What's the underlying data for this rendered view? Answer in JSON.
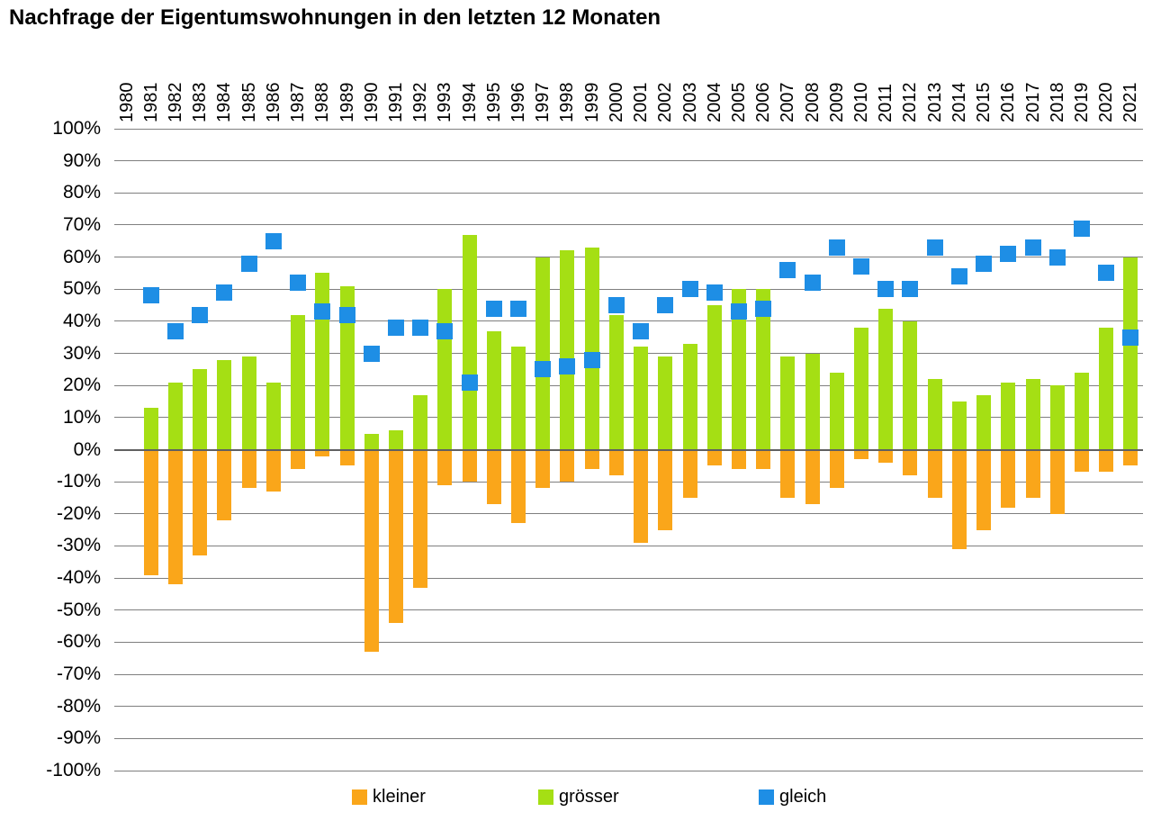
{
  "title": "Nachfrage der Eigentumswohnungen in den letzten 12 Monaten",
  "colors": {
    "kleiner": "#FAA61A",
    "groesser": "#A5DF14",
    "gleich": "#1E8EE5",
    "grid": "#7F7F7F",
    "zero_line": "#606060",
    "background": "#FFFFFF",
    "text": "#000000"
  },
  "legend": [
    {
      "key": "kleiner",
      "label": "kleiner",
      "color": "#FAA61A"
    },
    {
      "key": "groesser",
      "label": "grösser",
      "color": "#A5DF14"
    },
    {
      "key": "gleich",
      "label": "gleich",
      "color": "#1E8EE5"
    }
  ],
  "y_axis": {
    "min": -100,
    "max": 100,
    "step": 10,
    "suffix": "%"
  },
  "chart_data": {
    "type": "bar",
    "title": "Nachfrage der Eigentumswohnungen in den letzten 12 Monaten",
    "xlabel": "",
    "ylabel": "",
    "ylim": [
      -100,
      100
    ],
    "ytick_step": 10,
    "grid": true,
    "legend_position": "bottom",
    "categories": [
      1980,
      1981,
      1982,
      1983,
      1984,
      1985,
      1986,
      1987,
      1988,
      1989,
      1990,
      1991,
      1992,
      1993,
      1994,
      1995,
      1996,
      1997,
      1998,
      1999,
      2000,
      2001,
      2002,
      2003,
      2004,
      2005,
      2006,
      2007,
      2008,
      2009,
      2010,
      2011,
      2012,
      2013,
      2014,
      2015,
      2016,
      2017,
      2018,
      2019,
      2020,
      2021
    ],
    "series": [
      {
        "name": "kleiner",
        "render": "bar",
        "color": "#FAA61A",
        "values": [
          null,
          -39,
          -42,
          -33,
          -22,
          -12,
          -13,
          -6,
          -2,
          -5,
          -63,
          -54,
          -43,
          -11,
          -10,
          -17,
          -23,
          -12,
          -10,
          -6,
          -8,
          -29,
          -25,
          -15,
          -5,
          -6,
          -6,
          -15,
          -17,
          -12,
          -3,
          -4,
          -8,
          -15,
          -31,
          -25,
          -18,
          -15,
          -20,
          -7,
          -7,
          -5
        ]
      },
      {
        "name": "grösser",
        "render": "bar",
        "color": "#A5DF14",
        "values": [
          null,
          13,
          21,
          25,
          28,
          29,
          21,
          42,
          55,
          51,
          5,
          6,
          17,
          50,
          67,
          37,
          32,
          60,
          62,
          63,
          42,
          32,
          29,
          33,
          45,
          50,
          50,
          29,
          30,
          24,
          38,
          44,
          40,
          22,
          15,
          17,
          21,
          22,
          20,
          24,
          38,
          60
        ]
      },
      {
        "name": "gleich",
        "render": "square-marker",
        "color": "#1E8EE5",
        "values": [
          null,
          48,
          37,
          42,
          49,
          58,
          65,
          52,
          43,
          42,
          30,
          38,
          38,
          37,
          21,
          44,
          44,
          25,
          26,
          28,
          45,
          37,
          45,
          50,
          49,
          43,
          44,
          56,
          52,
          63,
          57,
          50,
          50,
          63,
          54,
          58,
          61,
          63,
          60,
          69,
          55,
          35
        ]
      }
    ]
  }
}
